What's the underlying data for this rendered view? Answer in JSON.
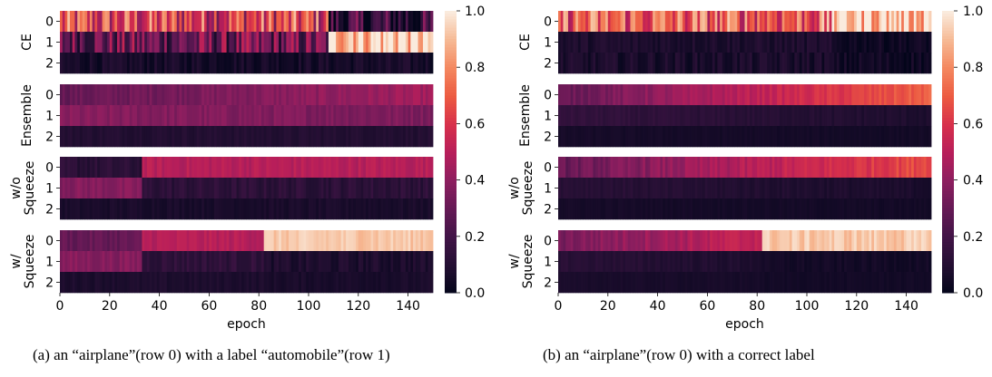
{
  "chart_data": [
    {
      "type": "heatmap",
      "panel": "(a)",
      "xlabel": "epoch",
      "x_ticks": [
        0,
        20,
        40,
        60,
        80,
        100,
        120,
        140
      ],
      "xlim": [
        0,
        150
      ],
      "colorbar": {
        "range": [
          0.0,
          1.0
        ],
        "ticks": [
          "0.0",
          "0.2",
          "0.4",
          "0.6",
          "0.8",
          "1.0"
        ],
        "colormap": "rocket"
      },
      "row_ticks": [
        "0",
        "1",
        "2"
      ],
      "subplots": [
        {
          "ylabel": [
            "CE"
          ],
          "style": "noisy",
          "transition_epoch": 108,
          "rows": [
            {
              "row": "0",
              "level_before": 0.62,
              "level_after": 0.12,
              "noise": 0.3
            },
            {
              "row": "1",
              "level_before": 0.3,
              "level_after": 0.97,
              "noise": 0.25
            },
            {
              "row": "2",
              "level_before": 0.06,
              "level_after": 0.06,
              "noise": 0.05
            }
          ]
        },
        {
          "ylabel": [
            "Ensemble"
          ],
          "style": "smooth",
          "transition_epoch": 150,
          "rows": [
            {
              "row": "0",
              "level_start": 0.3,
              "level_end": 0.45,
              "noise": 0.04
            },
            {
              "row": "1",
              "level_start": 0.38,
              "level_end": 0.36,
              "noise": 0.04
            },
            {
              "row": "2",
              "level_start": 0.1,
              "level_end": 0.1,
              "noise": 0.02
            }
          ]
        },
        {
          "ylabel": [
            "w/o",
            "Squeeze"
          ],
          "style": "step",
          "transition_epoch": 33,
          "rows": [
            {
              "row": "0",
              "level_before": 0.12,
              "level_after": 0.5,
              "noise": 0.04
            },
            {
              "row": "1",
              "level_before": 0.38,
              "level_after": 0.13,
              "noise": 0.04
            },
            {
              "row": "2",
              "level_before": 0.07,
              "level_after": 0.07,
              "noise": 0.02
            }
          ]
        },
        {
          "ylabel": [
            "w/",
            "Squeeze"
          ],
          "style": "two-step",
          "transition_epoch": 33,
          "second_transition_epoch": 82,
          "rows": [
            {
              "row": "0",
              "level_before": 0.3,
              "level_mid": 0.5,
              "level_after": 0.93,
              "noise": 0.04
            },
            {
              "row": "1",
              "level_before": 0.38,
              "level_mid": 0.14,
              "level_after": 0.08,
              "noise": 0.04
            },
            {
              "row": "2",
              "level_before": 0.08,
              "level_mid": 0.08,
              "level_after": 0.07,
              "noise": 0.02
            }
          ]
        }
      ]
    },
    {
      "type": "heatmap",
      "panel": "(b)",
      "xlabel": "epoch",
      "x_ticks": [
        0,
        20,
        40,
        60,
        80,
        100,
        120,
        140
      ],
      "xlim": [
        0,
        150
      ],
      "colorbar": {
        "range": [
          0.0,
          1.0
        ],
        "ticks": [
          "0.0",
          "0.2",
          "0.4",
          "0.6",
          "0.8",
          "1.0"
        ],
        "colormap": "rocket"
      },
      "row_ticks": [
        "0",
        "1",
        "2"
      ],
      "subplots": [
        {
          "ylabel": [
            "CE"
          ],
          "style": "noisy",
          "transition_epoch": 110,
          "rows": [
            {
              "row": "0",
              "level_before": 0.7,
              "level_after": 0.97,
              "noise": 0.25
            },
            {
              "row": "1",
              "level_before": 0.08,
              "level_after": 0.04,
              "noise": 0.04
            },
            {
              "row": "2",
              "level_before": 0.07,
              "level_after": 0.04,
              "noise": 0.05
            }
          ]
        },
        {
          "ylabel": [
            "Ensemble"
          ],
          "style": "smooth",
          "transition_epoch": 150,
          "rows": [
            {
              "row": "0",
              "level_start": 0.3,
              "level_end": 0.72,
              "noise": 0.04
            },
            {
              "row": "1",
              "level_start": 0.15,
              "level_end": 0.08,
              "noise": 0.02
            },
            {
              "row": "2",
              "level_start": 0.06,
              "level_end": 0.05,
              "noise": 0.01
            }
          ]
        },
        {
          "ylabel": [
            "w/o",
            "Squeeze"
          ],
          "style": "smooth",
          "transition_epoch": 150,
          "rows": [
            {
              "row": "0",
              "level_start": 0.3,
              "level_end": 0.68,
              "noise": 0.05
            },
            {
              "row": "1",
              "level_start": 0.12,
              "level_end": 0.07,
              "noise": 0.02
            },
            {
              "row": "2",
              "level_start": 0.06,
              "level_end": 0.05,
              "noise": 0.01
            }
          ]
        },
        {
          "ylabel": [
            "w/",
            "Squeeze"
          ],
          "style": "smooth-step",
          "transition_epoch": 82,
          "rows": [
            {
              "row": "0",
              "level_before": 0.35,
              "level_mid": 0.55,
              "level_after": 0.93,
              "noise": 0.05
            },
            {
              "row": "1",
              "level_before": 0.12,
              "level_mid": 0.08,
              "level_after": 0.05,
              "noise": 0.02
            },
            {
              "row": "2",
              "level_before": 0.07,
              "level_mid": 0.06,
              "level_after": 0.05,
              "noise": 0.01
            }
          ]
        }
      ]
    }
  ],
  "captions": {
    "a": "(a) an “airplane”(row 0) with a label “automobile”(row 1)",
    "b": "(b) an “airplane”(row 0) with a correct label"
  }
}
